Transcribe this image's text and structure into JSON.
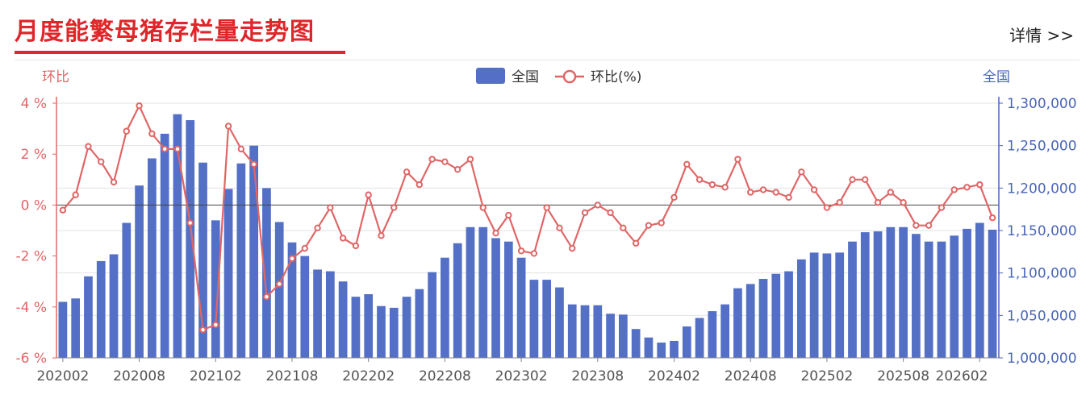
{
  "header": {
    "title": "月度能繁母猪存栏量走势图",
    "details_link": "详情 >>"
  },
  "chart_data": {
    "type": "bar+line",
    "legend": [
      "全国",
      "环比(%)"
    ],
    "left_axis_label": "环比",
    "right_axis_label": "全国",
    "left_ticks": [
      "4 %",
      "2 %",
      "0 %",
      "-2 %",
      "-4 %",
      "-6 %"
    ],
    "right_ticks": [
      "1,300,000",
      "1,250,000",
      "1,200,000",
      "1,150,000",
      "1,100,000",
      "1,050,000",
      "1,000,000"
    ],
    "x_tick_labels": [
      "202002",
      "202008",
      "202102",
      "202108",
      "202202",
      "202208",
      "202302",
      "202308",
      "202402",
      "202408",
      "202502",
      "202508",
      "202602"
    ],
    "x_tick_every": 6,
    "ylim_left": [
      -6,
      4
    ],
    "ylim_right": [
      1000000,
      1300000
    ],
    "colors": {
      "bar": "#5470c6",
      "line": "#e06666",
      "axis_left": "#e06666",
      "axis_right": "#4a66b8"
    },
    "start": "202002",
    "series": [
      {
        "name": "全国",
        "type": "bar",
        "values": [
          1066000,
          1070000,
          1096000,
          1114000,
          1122000,
          1159000,
          1203000,
          1235000,
          1264000,
          1287000,
          1280000,
          1230000,
          1162000,
          1199000,
          1229000,
          1250000,
          1200000,
          1160000,
          1136000,
          1120000,
          1104000,
          1102000,
          1090000,
          1072000,
          1075000,
          1061000,
          1059000,
          1072000,
          1081000,
          1101000,
          1118000,
          1135000,
          1154000,
          1154000,
          1141000,
          1137000,
          1118000,
          1092000,
          1092000,
          1083000,
          1063000,
          1062000,
          1062000,
          1052000,
          1051000,
          1034000,
          1024000,
          1018000,
          1020000,
          1037000,
          1047000,
          1055000,
          1063000,
          1082000,
          1087000,
          1093000,
          1099000,
          1102000,
          1116000,
          1124000,
          1123000,
          1124000,
          1137000,
          1148000,
          1149000,
          1154000,
          1154000,
          1146000,
          1137000,
          1137000,
          1144000,
          1152000,
          1159000,
          1151000
        ]
      },
      {
        "name": "环比(%)",
        "type": "line",
        "values": [
          -0.2,
          0.4,
          2.3,
          1.7,
          0.9,
          2.9,
          3.9,
          2.8,
          2.2,
          2.2,
          -0.7,
          -4.9,
          -4.7,
          3.1,
          2.2,
          1.6,
          -3.6,
          -3.1,
          -2.1,
          -1.7,
          -0.9,
          -0.1,
          -1.3,
          -1.6,
          0.4,
          -1.2,
          -0.1,
          1.3,
          0.8,
          1.8,
          1.7,
          1.4,
          1.8,
          -0.1,
          -1.1,
          -0.4,
          -1.8,
          -1.9,
          -0.1,
          -0.9,
          -1.7,
          -0.3,
          0.0,
          -0.3,
          -0.9,
          -1.5,
          -0.8,
          -0.7,
          0.3,
          1.6,
          1.0,
          0.8,
          0.7,
          1.8,
          0.5,
          0.6,
          0.5,
          0.3,
          1.3,
          0.6,
          -0.1,
          0.1,
          1.0,
          1.0,
          0.1,
          0.5,
          0.1,
          -0.8,
          -0.8,
          -0.1,
          0.6,
          0.7,
          0.8,
          -0.5
        ]
      }
    ]
  }
}
